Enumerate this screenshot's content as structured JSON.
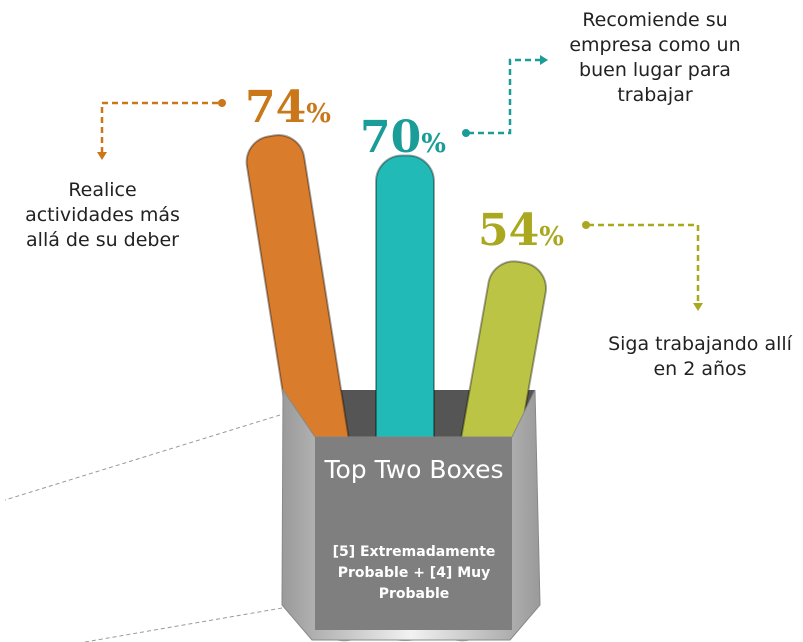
{
  "chart_data": {
    "type": "bar",
    "title": "Top Two Boxes",
    "subtitle": "[5] Extremadamente Probable + [4] Muy Probable",
    "categories": [
      "Realice actividades más allá de su deber",
      "Recomiende su empresa como un buen lugar para trabajar",
      "Siga trabajando allí en 2 años"
    ],
    "values": [
      74,
      70,
      54
    ],
    "value_labels": [
      "74%",
      "70%",
      "54%"
    ],
    "colors": [
      "#d97c2b",
      "#22bab6",
      "#bcc445"
    ],
    "label_colors": [
      "#c97718",
      "#1a9c98",
      "#a9a81e"
    ]
  }
}
